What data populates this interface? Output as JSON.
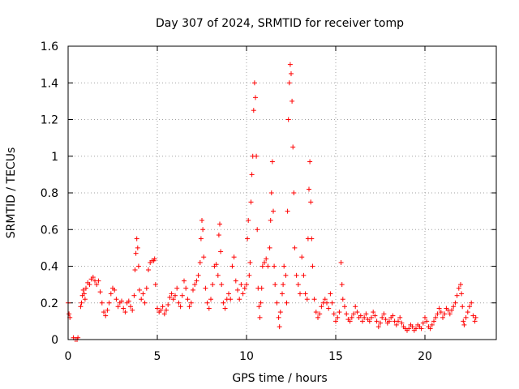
{
  "chart_data": {
    "type": "scatter",
    "title": "Day 307 of 2024, SRMTID for receiver tomp",
    "xlabel": "GPS time / hours",
    "ylabel": "SRMTID / TECUs",
    "xlim": [
      0,
      24
    ],
    "ylim": [
      0,
      1.6
    ],
    "xticks": [
      0,
      5,
      10,
      15,
      20
    ],
    "xtick_labels": [
      "0",
      "5",
      "10",
      "15",
      "20"
    ],
    "yticks": [
      0,
      0.2,
      0.4,
      0.6,
      0.8,
      1.0,
      1.2,
      1.4,
      1.6
    ],
    "ytick_labels": [
      "0",
      "0.2",
      "0.4",
      "0.6",
      "0.8",
      "1",
      "1.2",
      "1.4",
      "1.6"
    ],
    "grid": true,
    "marker": "+",
    "series_color": "#ff0000",
    "series": [
      {
        "name": "SRMTID",
        "points": [
          [
            0.0,
            0.2
          ],
          [
            0.05,
            0.14
          ],
          [
            0.1,
            0.12
          ],
          [
            0.3,
            0.01
          ],
          [
            0.4,
            0.0
          ],
          [
            0.5,
            0.0
          ],
          [
            0.55,
            0.01
          ],
          [
            0.7,
            0.18
          ],
          [
            0.75,
            0.2
          ],
          [
            0.8,
            0.24
          ],
          [
            0.85,
            0.27
          ],
          [
            0.9,
            0.25
          ],
          [
            0.95,
            0.22
          ],
          [
            1.0,
            0.28
          ],
          [
            1.1,
            0.31
          ],
          [
            1.2,
            0.3
          ],
          [
            1.3,
            0.33
          ],
          [
            1.4,
            0.34
          ],
          [
            1.5,
            0.32
          ],
          [
            1.6,
            0.3
          ],
          [
            1.7,
            0.32
          ],
          [
            1.8,
            0.26
          ],
          [
            1.9,
            0.2
          ],
          [
            2.0,
            0.15
          ],
          [
            2.1,
            0.13
          ],
          [
            2.2,
            0.16
          ],
          [
            2.3,
            0.2
          ],
          [
            2.4,
            0.25
          ],
          [
            2.5,
            0.28
          ],
          [
            2.6,
            0.27
          ],
          [
            2.7,
            0.22
          ],
          [
            2.8,
            0.18
          ],
          [
            2.9,
            0.2
          ],
          [
            3.0,
            0.21
          ],
          [
            3.1,
            0.17
          ],
          [
            3.2,
            0.15
          ],
          [
            3.3,
            0.2
          ],
          [
            3.4,
            0.21
          ],
          [
            3.5,
            0.18
          ],
          [
            3.6,
            0.16
          ],
          [
            3.7,
            0.24
          ],
          [
            3.75,
            0.38
          ],
          [
            3.8,
            0.47
          ],
          [
            3.85,
            0.55
          ],
          [
            3.9,
            0.5
          ],
          [
            3.95,
            0.4
          ],
          [
            4.0,
            0.27
          ],
          [
            4.1,
            0.22
          ],
          [
            4.2,
            0.25
          ],
          [
            4.3,
            0.2
          ],
          [
            4.4,
            0.28
          ],
          [
            4.5,
            0.38
          ],
          [
            4.6,
            0.42
          ],
          [
            4.7,
            0.43
          ],
          [
            4.8,
            0.43
          ],
          [
            4.85,
            0.44
          ],
          [
            4.9,
            0.3
          ],
          [
            5.0,
            0.17
          ],
          [
            5.1,
            0.15
          ],
          [
            5.2,
            0.16
          ],
          [
            5.3,
            0.18
          ],
          [
            5.4,
            0.14
          ],
          [
            5.5,
            0.16
          ],
          [
            5.6,
            0.19
          ],
          [
            5.7,
            0.23
          ],
          [
            5.8,
            0.25
          ],
          [
            5.9,
            0.22
          ],
          [
            6.0,
            0.24
          ],
          [
            6.1,
            0.28
          ],
          [
            6.2,
            0.2
          ],
          [
            6.3,
            0.18
          ],
          [
            6.4,
            0.24
          ],
          [
            6.5,
            0.32
          ],
          [
            6.6,
            0.28
          ],
          [
            6.7,
            0.22
          ],
          [
            6.8,
            0.18
          ],
          [
            6.9,
            0.2
          ],
          [
            7.0,
            0.27
          ],
          [
            7.1,
            0.3
          ],
          [
            7.2,
            0.32
          ],
          [
            7.3,
            0.35
          ],
          [
            7.4,
            0.42
          ],
          [
            7.45,
            0.55
          ],
          [
            7.5,
            0.65
          ],
          [
            7.55,
            0.6
          ],
          [
            7.6,
            0.45
          ],
          [
            7.7,
            0.28
          ],
          [
            7.8,
            0.2
          ],
          [
            7.9,
            0.17
          ],
          [
            8.0,
            0.22
          ],
          [
            8.1,
            0.3
          ],
          [
            8.2,
            0.4
          ],
          [
            8.3,
            0.41
          ],
          [
            8.4,
            0.35
          ],
          [
            8.45,
            0.57
          ],
          [
            8.5,
            0.63
          ],
          [
            8.55,
            0.48
          ],
          [
            8.6,
            0.3
          ],
          [
            8.7,
            0.2
          ],
          [
            8.8,
            0.17
          ],
          [
            8.9,
            0.22
          ],
          [
            9.0,
            0.25
          ],
          [
            9.1,
            0.22
          ],
          [
            9.2,
            0.4
          ],
          [
            9.3,
            0.45
          ],
          [
            9.4,
            0.32
          ],
          [
            9.5,
            0.27
          ],
          [
            9.6,
            0.22
          ],
          [
            9.7,
            0.3
          ],
          [
            9.8,
            0.25
          ],
          [
            9.9,
            0.28
          ],
          [
            10.0,
            0.3
          ],
          [
            10.05,
            0.55
          ],
          [
            10.1,
            0.65
          ],
          [
            10.15,
            0.35
          ],
          [
            10.2,
            0.42
          ],
          [
            10.25,
            0.75
          ],
          [
            10.3,
            0.9
          ],
          [
            10.35,
            1.0
          ],
          [
            10.4,
            1.25
          ],
          [
            10.45,
            1.4
          ],
          [
            10.5,
            1.32
          ],
          [
            10.55,
            1.0
          ],
          [
            10.6,
            0.6
          ],
          [
            10.65,
            0.28
          ],
          [
            10.7,
            0.18
          ],
          [
            10.75,
            0.12
          ],
          [
            10.8,
            0.2
          ],
          [
            10.85,
            0.28
          ],
          [
            10.9,
            0.4
          ],
          [
            11.0,
            0.42
          ],
          [
            11.1,
            0.44
          ],
          [
            11.2,
            0.4
          ],
          [
            11.3,
            0.5
          ],
          [
            11.35,
            0.65
          ],
          [
            11.4,
            0.8
          ],
          [
            11.45,
            0.97
          ],
          [
            11.5,
            0.7
          ],
          [
            11.55,
            0.4
          ],
          [
            11.6,
            0.3
          ],
          [
            11.7,
            0.2
          ],
          [
            11.8,
            0.12
          ],
          [
            11.85,
            0.07
          ],
          [
            11.9,
            0.15
          ],
          [
            12.0,
            0.25
          ],
          [
            12.05,
            0.3
          ],
          [
            12.1,
            0.4
          ],
          [
            12.2,
            0.35
          ],
          [
            12.25,
            0.2
          ],
          [
            12.3,
            0.7
          ],
          [
            12.35,
            1.2
          ],
          [
            12.4,
            1.4
          ],
          [
            12.45,
            1.5
          ],
          [
            12.5,
            1.45
          ],
          [
            12.55,
            1.3
          ],
          [
            12.6,
            1.05
          ],
          [
            12.65,
            0.8
          ],
          [
            12.7,
            0.5
          ],
          [
            12.8,
            0.35
          ],
          [
            12.9,
            0.3
          ],
          [
            13.0,
            0.25
          ],
          [
            13.1,
            0.45
          ],
          [
            13.2,
            0.35
          ],
          [
            13.3,
            0.25
          ],
          [
            13.4,
            0.22
          ],
          [
            13.45,
            0.55
          ],
          [
            13.5,
            0.82
          ],
          [
            13.55,
            0.97
          ],
          [
            13.6,
            0.75
          ],
          [
            13.65,
            0.55
          ],
          [
            13.7,
            0.4
          ],
          [
            13.8,
            0.22
          ],
          [
            13.9,
            0.15
          ],
          [
            14.0,
            0.12
          ],
          [
            14.1,
            0.14
          ],
          [
            14.2,
            0.18
          ],
          [
            14.3,
            0.2
          ],
          [
            14.4,
            0.22
          ],
          [
            14.5,
            0.2
          ],
          [
            14.6,
            0.17
          ],
          [
            14.7,
            0.25
          ],
          [
            14.8,
            0.2
          ],
          [
            14.9,
            0.14
          ],
          [
            15.0,
            0.1
          ],
          [
            15.1,
            0.12
          ],
          [
            15.2,
            0.15
          ],
          [
            15.3,
            0.42
          ],
          [
            15.35,
            0.3
          ],
          [
            15.4,
            0.22
          ],
          [
            15.5,
            0.18
          ],
          [
            15.6,
            0.14
          ],
          [
            15.7,
            0.11
          ],
          [
            15.8,
            0.1
          ],
          [
            15.9,
            0.12
          ],
          [
            16.0,
            0.14
          ],
          [
            16.1,
            0.18
          ],
          [
            16.2,
            0.15
          ],
          [
            16.3,
            0.12
          ],
          [
            16.4,
            0.13
          ],
          [
            16.5,
            0.1
          ],
          [
            16.6,
            0.12
          ],
          [
            16.7,
            0.14
          ],
          [
            16.8,
            0.11
          ],
          [
            16.9,
            0.1
          ],
          [
            17.0,
            0.12
          ],
          [
            17.1,
            0.15
          ],
          [
            17.2,
            0.13
          ],
          [
            17.3,
            0.1
          ],
          [
            17.4,
            0.07
          ],
          [
            17.5,
            0.09
          ],
          [
            17.6,
            0.12
          ],
          [
            17.7,
            0.14
          ],
          [
            17.8,
            0.11
          ],
          [
            17.9,
            0.09
          ],
          [
            18.0,
            0.1
          ],
          [
            18.1,
            0.12
          ],
          [
            18.2,
            0.13
          ],
          [
            18.3,
            0.1
          ],
          [
            18.4,
            0.08
          ],
          [
            18.5,
            0.1
          ],
          [
            18.6,
            0.12
          ],
          [
            18.7,
            0.09
          ],
          [
            18.8,
            0.07
          ],
          [
            18.9,
            0.06
          ],
          [
            19.0,
            0.05
          ],
          [
            19.1,
            0.06
          ],
          [
            19.2,
            0.08
          ],
          [
            19.3,
            0.07
          ],
          [
            19.4,
            0.05
          ],
          [
            19.5,
            0.06
          ],
          [
            19.6,
            0.08
          ],
          [
            19.7,
            0.07
          ],
          [
            19.8,
            0.06
          ],
          [
            19.9,
            0.09
          ],
          [
            20.0,
            0.12
          ],
          [
            20.1,
            0.1
          ],
          [
            20.2,
            0.07
          ],
          [
            20.3,
            0.06
          ],
          [
            20.4,
            0.08
          ],
          [
            20.5,
            0.1
          ],
          [
            20.6,
            0.12
          ],
          [
            20.7,
            0.14
          ],
          [
            20.8,
            0.17
          ],
          [
            20.9,
            0.15
          ],
          [
            21.0,
            0.12
          ],
          [
            21.1,
            0.14
          ],
          [
            21.2,
            0.17
          ],
          [
            21.3,
            0.16
          ],
          [
            21.4,
            0.14
          ],
          [
            21.5,
            0.16
          ],
          [
            21.6,
            0.18
          ],
          [
            21.7,
            0.2
          ],
          [
            21.8,
            0.24
          ],
          [
            21.9,
            0.28
          ],
          [
            22.0,
            0.3
          ],
          [
            22.05,
            0.25
          ],
          [
            22.1,
            0.18
          ],
          [
            22.15,
            0.1
          ],
          [
            22.2,
            0.08
          ],
          [
            22.3,
            0.12
          ],
          [
            22.4,
            0.15
          ],
          [
            22.5,
            0.18
          ],
          [
            22.6,
            0.2
          ],
          [
            22.7,
            0.13
          ],
          [
            22.8,
            0.1
          ],
          [
            22.85,
            0.12
          ]
        ]
      }
    ]
  }
}
